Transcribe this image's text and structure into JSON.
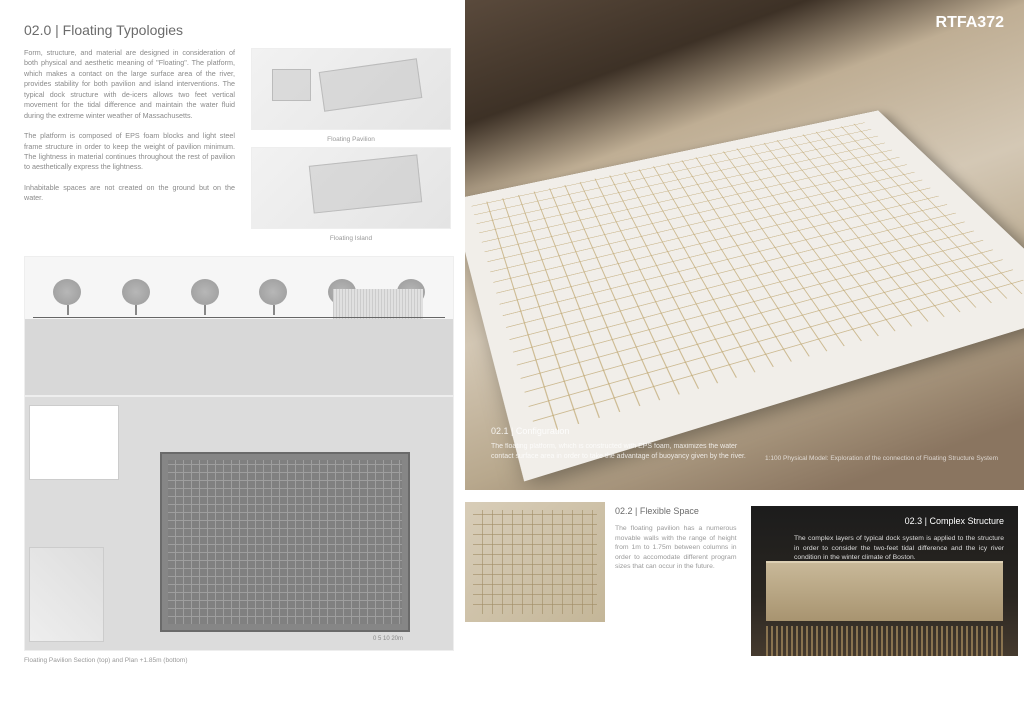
{
  "code": "RTFA372",
  "section02": {
    "title": "02.0 | Floating Typologies",
    "para1": "Form, structure, and material are designed in consideration of both physical and aesthetic meaning of \"Floating\". The platform, which makes a contact on the large surface area of the river, provides stability for both pavilion and island interventions. The typical dock structure with de-icers allows two feet vertical movement for the tidal difference and maintain the water fluid during the extreme winter weather of Massachusetts.",
    "para2": "The platform is composed of EPS foam blocks and light steel frame structure in order to keep the weight of pavilion minimum. The lightness in material continues throughout the rest of pavilion to aesthetically express the lightness.",
    "para3": "Inhabitable spaces are not created on the ground but on the water.",
    "diag1_caption": "Floating Pavilion",
    "diag2_caption": "Floating Island"
  },
  "plan_caption": "Floating Pavilion Section (top) and Plan +1.85m (bottom)",
  "scale_text": "0   5   10      20m",
  "hero": {
    "title": "02.1 | Configuration",
    "body": "The floating platform, which is constructed with EPS foam, maximizes the water contact surface area in order to take the advantage of buoyancy given by the river.",
    "caption": "1:100 Physical Model: Exploration of the connection of Floating Structure System"
  },
  "flex": {
    "title": "02.2 | Flexible Space",
    "body": "The floating pavilion has a numerous movable walls with the range of height from 1m to 1.75m between columns in order to accomodate different program sizes that can occur in the future."
  },
  "struct": {
    "title": "02.3 | Complex Structure",
    "body": "The complex layers of typical dock system is applied to the structure in order to consider the two-feet tidal difference and the icy river condition in the winter climate of Boston."
  }
}
